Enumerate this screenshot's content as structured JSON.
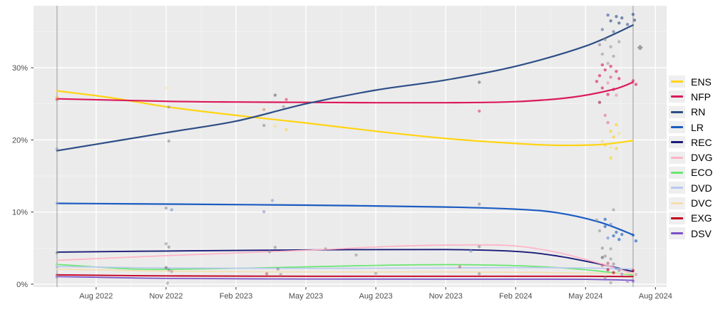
{
  "chart_data": {
    "type": "line",
    "title": "",
    "description": "Polling trends with scatter points, June 2022 to July 2024",
    "x_axis": {
      "ticks": [
        {
          "label": "Aug 2022",
          "year": 2022.6
        },
        {
          "label": "Nov 2022",
          "year": 2022.85
        },
        {
          "label": "Feb 2023",
          "year": 2023.1
        },
        {
          "label": "May 2023",
          "year": 2023.35
        },
        {
          "label": "Aug 2023",
          "year": 2023.6
        },
        {
          "label": "Nov 2023",
          "year": 2023.85
        },
        {
          "label": "Feb 2024",
          "year": 2024.1
        },
        {
          "label": "May 2024",
          "year": 2024.35
        },
        {
          "label": "Aug 2024",
          "year": 2024.6
        }
      ],
      "domain": [
        2022.376,
        2024.64
      ]
    },
    "y_axis": {
      "ticks": [
        {
          "label": "0%",
          "value": 0
        },
        {
          "label": "10%",
          "value": 10
        },
        {
          "label": "20%",
          "value": 20
        },
        {
          "label": "30%",
          "value": 30
        }
      ],
      "minor_ticks": [
        5,
        15,
        25,
        35
      ],
      "domain": [
        -0.4,
        38.6
      ]
    },
    "reference_lines": {
      "vertical_years": [
        2022.46,
        2024.52
      ]
    },
    "series": [
      {
        "code": "ENS",
        "color": "#ffd412",
        "width": 2.2,
        "points": [
          [
            2022.46,
            26.8
          ],
          [
            2022.66,
            25.8
          ],
          [
            2022.85,
            24.6
          ],
          [
            2023.1,
            23.4
          ],
          [
            2023.35,
            22.35
          ],
          [
            2023.6,
            21.2
          ],
          [
            2023.85,
            20.2
          ],
          [
            2024.1,
            19.5
          ],
          [
            2024.25,
            19.25
          ],
          [
            2024.4,
            19.35
          ],
          [
            2024.52,
            19.9
          ]
        ]
      },
      {
        "code": "NFP",
        "color": "#db1a5c",
        "width": 2.2,
        "points": [
          [
            2022.46,
            25.7
          ],
          [
            2022.85,
            25.35
          ],
          [
            2023.1,
            25.25
          ],
          [
            2023.35,
            25.2
          ],
          [
            2023.6,
            25.15
          ],
          [
            2023.85,
            25.15
          ],
          [
            2024.1,
            25.3
          ],
          [
            2024.3,
            25.9
          ],
          [
            2024.45,
            27.0
          ],
          [
            2024.52,
            28.0
          ]
        ]
      },
      {
        "code": "RN",
        "color": "#2e4e86",
        "width": 2.2,
        "points": [
          [
            2022.46,
            18.5
          ],
          [
            2022.85,
            21.0
          ],
          [
            2023.1,
            22.6
          ],
          [
            2023.35,
            25.0
          ],
          [
            2023.6,
            26.9
          ],
          [
            2023.85,
            28.3
          ],
          [
            2024.1,
            30.2
          ],
          [
            2024.35,
            33.0
          ],
          [
            2024.52,
            35.9
          ]
        ]
      },
      {
        "code": "LR",
        "color": "#1c5cc2",
        "width": 2.2,
        "points": [
          [
            2022.46,
            11.2
          ],
          [
            2022.85,
            11.1
          ],
          [
            2023.35,
            10.95
          ],
          [
            2023.85,
            10.7
          ],
          [
            2024.1,
            10.4
          ],
          [
            2024.25,
            9.9
          ],
          [
            2024.4,
            8.6
          ],
          [
            2024.52,
            6.85
          ]
        ]
      },
      {
        "code": "REC",
        "color": "#1b1b7a",
        "width": 1.9,
        "points": [
          [
            2022.46,
            4.45
          ],
          [
            2022.85,
            4.6
          ],
          [
            2023.35,
            4.75
          ],
          [
            2023.85,
            4.8
          ],
          [
            2024.1,
            4.55
          ],
          [
            2024.25,
            3.9
          ],
          [
            2024.4,
            2.8
          ],
          [
            2024.52,
            1.75
          ]
        ]
      },
      {
        "code": "DVG",
        "color": "#ffb3c6",
        "width": 1.7,
        "points": [
          [
            2022.46,
            3.3
          ],
          [
            2022.85,
            3.95
          ],
          [
            2023.35,
            4.7
          ],
          [
            2023.66,
            5.25
          ],
          [
            2023.92,
            5.45
          ],
          [
            2024.1,
            5.3
          ],
          [
            2024.25,
            4.4
          ],
          [
            2024.4,
            2.9
          ],
          [
            2024.52,
            1.45
          ]
        ]
      },
      {
        "code": "ECO",
        "color": "#68e670",
        "width": 1.7,
        "points": [
          [
            2022.46,
            2.75
          ],
          [
            2022.7,
            2.15
          ],
          [
            2022.85,
            2.05
          ],
          [
            2023.1,
            2.2
          ],
          [
            2023.35,
            2.4
          ],
          [
            2023.66,
            2.65
          ],
          [
            2023.92,
            2.7
          ],
          [
            2024.15,
            2.5
          ],
          [
            2024.35,
            2.0
          ],
          [
            2024.52,
            1.25
          ]
        ]
      },
      {
        "code": "DVD",
        "color": "#b9c9ee",
        "width": 1.7,
        "points": [
          [
            2022.46,
            2.45
          ],
          [
            2022.85,
            2.25
          ],
          [
            2023.35,
            2.2
          ],
          [
            2023.85,
            2.25
          ],
          [
            2024.1,
            2.3
          ],
          [
            2024.35,
            2.25
          ],
          [
            2024.52,
            2.1
          ]
        ]
      },
      {
        "code": "DVC",
        "color": "#f5deb0",
        "width": 1.7,
        "points": [
          [
            2022.46,
            2.1
          ],
          [
            2022.85,
            1.8
          ],
          [
            2023.35,
            1.7
          ],
          [
            2023.85,
            1.7
          ],
          [
            2024.1,
            1.65
          ],
          [
            2024.35,
            1.55
          ],
          [
            2024.52,
            1.45
          ]
        ]
      },
      {
        "code": "EXG",
        "color": "#c40020",
        "width": 1.9,
        "points": [
          [
            2022.46,
            1.3
          ],
          [
            2022.85,
            1.15
          ],
          [
            2023.35,
            1.1
          ],
          [
            2023.85,
            1.1
          ],
          [
            2024.1,
            1.1
          ],
          [
            2024.35,
            1.1
          ],
          [
            2024.52,
            1.05
          ]
        ]
      },
      {
        "code": "DSV",
        "color": "#7a52c8",
        "width": 1.7,
        "points": [
          [
            2022.46,
            1.05
          ],
          [
            2022.85,
            0.8
          ],
          [
            2023.35,
            0.72
          ],
          [
            2023.85,
            0.7
          ],
          [
            2024.1,
            0.7
          ],
          [
            2024.35,
            0.68
          ],
          [
            2024.52,
            0.55
          ]
        ]
      }
    ],
    "scatter_points": [
      [
        2022.46,
        25.9,
        "#f5b840"
      ],
      [
        2022.46,
        25.6,
        "#e2556e"
      ],
      [
        2022.46,
        18.72,
        "#8f949f"
      ],
      [
        2022.46,
        11.2,
        "#92a3cb"
      ],
      [
        2022.46,
        4.35,
        "#8f8f8f"
      ],
      [
        2022.46,
        2.75,
        "#a5dba5"
      ],
      [
        2022.46,
        2.35,
        "#aebdde"
      ],
      [
        2022.46,
        1.25,
        "#bb5555"
      ],
      [
        2022.46,
        1.0,
        "#a083cf"
      ],
      [
        2022.85,
        27.2,
        "#ffe58a"
      ],
      [
        2022.86,
        24.55,
        "#9b9b9b"
      ],
      [
        2022.86,
        19.85,
        "#8f8f8f"
      ],
      [
        2022.85,
        10.55,
        "#8f8f8f"
      ],
      [
        2022.87,
        10.3,
        "#7b97d4"
      ],
      [
        2022.85,
        5.6,
        "#9b9b9b"
      ],
      [
        2022.86,
        5.15,
        "#8f8f8f"
      ],
      [
        2022.85,
        2.3,
        "#6f6f6f"
      ],
      [
        2022.86,
        2.0,
        "#8f8f8f"
      ],
      [
        2022.87,
        1.75,
        "#c78e9b"
      ],
      [
        2022.855,
        0.15,
        "#a0a0a0"
      ],
      [
        2023.24,
        26.2,
        "#6a6a6a"
      ],
      [
        2023.28,
        25.6,
        "#e0496b"
      ],
      [
        2023.27,
        24.6,
        "#9b9b9b"
      ],
      [
        2023.2,
        24.2,
        "#e29060"
      ],
      [
        2023.2,
        22.0,
        "#8f8f8f"
      ],
      [
        2023.24,
        21.9,
        "#f3e083"
      ],
      [
        2023.28,
        21.4,
        "#ffd94d"
      ],
      [
        2023.23,
        11.6,
        "#86a0d0"
      ],
      [
        2023.2,
        10.05,
        "#a291c9"
      ],
      [
        2023.24,
        5.1,
        "#8f8f8f"
      ],
      [
        2023.22,
        4.5,
        "#9b9b9b"
      ],
      [
        2023.25,
        2.1,
        "#8f8f8f"
      ],
      [
        2023.21,
        1.45,
        "#c06060"
      ],
      [
        2023.26,
        1.35,
        "#9b9b9b"
      ],
      [
        2023.42,
        4.9,
        "#9b9b9b"
      ],
      [
        2023.53,
        4.05,
        "#9b9b9b"
      ],
      [
        2023.6,
        1.5,
        "#9b9b9b"
      ],
      [
        2023.97,
        28.0,
        "#6f6f6f"
      ],
      [
        2023.97,
        24.0,
        "#e0496b"
      ],
      [
        2023.97,
        11.1,
        "#8f8f8f"
      ],
      [
        2023.97,
        5.2,
        "#8f8f8f"
      ],
      [
        2023.94,
        4.6,
        "#7b97d4"
      ],
      [
        2023.9,
        2.4,
        "#c27070"
      ],
      [
        2023.97,
        1.45,
        "#8f8f8f"
      ],
      [
        2024.43,
        37.3,
        "#3d5c9c"
      ],
      [
        2024.46,
        37.1,
        "#2e4e86"
      ],
      [
        2024.48,
        36.9,
        "#2e4e86"
      ],
      [
        2024.44,
        36.5,
        "#2e4e86"
      ],
      [
        2024.47,
        36.2,
        "#2e4e86"
      ],
      [
        2024.5,
        36.0,
        "#3d5c9c"
      ],
      [
        2024.52,
        37.4,
        "#2e4e86"
      ],
      [
        2024.525,
        36.6,
        "#2e4e86"
      ],
      [
        2024.41,
        35.3,
        "#5775ad"
      ],
      [
        2024.45,
        35.0,
        "#5775ad"
      ],
      [
        2024.42,
        33.9,
        "#8f8f8f"
      ],
      [
        2024.47,
        33.6,
        "#9b9b9b"
      ],
      [
        2024.4,
        33.2,
        "#8f8f8f"
      ],
      [
        2024.44,
        32.9,
        "#9b9b9b"
      ],
      [
        2024.41,
        31.9,
        "#9b9b9b"
      ],
      [
        2024.45,
        31.6,
        "#9b9b9b"
      ],
      [
        2024.43,
        30.6,
        "#a0a0a0"
      ],
      [
        2024.41,
        30.4,
        "#db1a5c"
      ],
      [
        2024.44,
        30.2,
        "#db1a5c"
      ],
      [
        2024.42,
        29.7,
        "#db1a5c"
      ],
      [
        2024.46,
        29.5,
        "#db1a5c"
      ],
      [
        2024.4,
        28.9,
        "#db1a5c"
      ],
      [
        2024.44,
        28.7,
        "#e25580"
      ],
      [
        2024.47,
        28.5,
        "#db1a5c"
      ],
      [
        2024.52,
        28.2,
        "#db1a5c"
      ],
      [
        2024.39,
        28.1,
        "#db1a5c"
      ],
      [
        2024.43,
        27.9,
        "#e98ca6"
      ],
      [
        2024.53,
        27.7,
        "#db1a5c"
      ],
      [
        2024.41,
        27.2,
        "#db1a5c"
      ],
      [
        2024.45,
        27.0,
        "#db1a5c"
      ],
      [
        2024.43,
        26.3,
        "#db1a5c"
      ],
      [
        2024.46,
        26.2,
        "#e98ca6"
      ],
      [
        2024.4,
        25.2,
        "#9c2044"
      ],
      [
        2024.42,
        23.4,
        "#dd7591"
      ],
      [
        2024.43,
        22.4,
        "#dd7591"
      ],
      [
        2024.46,
        22.1,
        "#ffd412"
      ],
      [
        2024.44,
        21.2,
        "#ffd412"
      ],
      [
        2024.47,
        20.9,
        "#f5e28a"
      ],
      [
        2024.45,
        20.4,
        "#ffd412"
      ],
      [
        2024.41,
        19.8,
        "#f0dc70"
      ],
      [
        2024.42,
        19.3,
        "#ffd412"
      ],
      [
        2024.44,
        19.0,
        "#f5e28a"
      ],
      [
        2024.46,
        18.8,
        "#ffd412"
      ],
      [
        2024.44,
        17.5,
        "#ffd412"
      ],
      [
        2024.45,
        10.3,
        "#9b9b9b"
      ],
      [
        2024.42,
        9.0,
        "#1c5cc2"
      ],
      [
        2024.39,
        8.9,
        "#9b9b9b"
      ],
      [
        2024.44,
        8.3,
        "#678cdb"
      ],
      [
        2024.42,
        8.0,
        "#1c5cc2"
      ],
      [
        2024.4,
        7.4,
        "#9b9b9b"
      ],
      [
        2024.46,
        7.2,
        "#1c5cc2"
      ],
      [
        2024.48,
        6.9,
        "#1c5cc2"
      ],
      [
        2024.52,
        6.8,
        "#1c5cc2"
      ],
      [
        2024.45,
        6.7,
        "#1c5cc2"
      ],
      [
        2024.43,
        6.4,
        "#678cdb"
      ],
      [
        2024.47,
        6.2,
        "#1c5cc2"
      ],
      [
        2024.53,
        6.0,
        "#1c5cc2"
      ],
      [
        2024.41,
        5.0,
        "#8f8f8f"
      ],
      [
        2024.44,
        4.9,
        "#9b9b9b"
      ],
      [
        2024.42,
        3.9,
        "#8f8f8f"
      ],
      [
        2024.41,
        3.7,
        "#5f5f5f"
      ],
      [
        2024.44,
        3.5,
        "#9b9b9b"
      ],
      [
        2024.43,
        2.9,
        "#c25a66"
      ],
      [
        2024.45,
        2.8,
        "#8f8f8f"
      ],
      [
        2024.41,
        2.6,
        "#c25a66"
      ],
      [
        2024.46,
        2.2,
        "#678cdb"
      ],
      [
        2024.43,
        2.0,
        "#c40020"
      ],
      [
        2024.47,
        1.9,
        "#8f8f8f"
      ],
      [
        2024.52,
        1.9,
        "#c40020"
      ],
      [
        2024.45,
        1.6,
        "#c40020"
      ],
      [
        2024.48,
        1.4,
        "#a083cf"
      ],
      [
        2024.53,
        1.35,
        "#e98ca6"
      ],
      [
        2024.42,
        0.9,
        "#8f8f8f"
      ],
      [
        2024.5,
        0.4,
        "#a083cf"
      ],
      [
        2024.52,
        0.45,
        "#7a52c8"
      ],
      [
        2024.44,
        0.2,
        "#a0a0a0"
      ]
    ],
    "special_markers": [
      {
        "shape": "diamond",
        "year": 2024.545,
        "value": 32.8,
        "color": "#8f8f8f"
      }
    ],
    "legend": {
      "position": "right",
      "entries": [
        "ENS",
        "NFP",
        "RN",
        "LR",
        "REC",
        "DVG",
        "ECO",
        "DVD",
        "DVC",
        "EXG",
        "DSV"
      ]
    },
    "grid": {
      "major": true,
      "minor": true
    }
  },
  "colors": {
    "panel_background": "#ebebeb",
    "gridline": "#ffffff",
    "axis_text": "#4d4d4d",
    "tick_mark": "#333333",
    "reference_line": "#9b9b9b",
    "legend_key_background": "#efefef",
    "legend_text": "#000000",
    "page_background": "#ffffff"
  }
}
